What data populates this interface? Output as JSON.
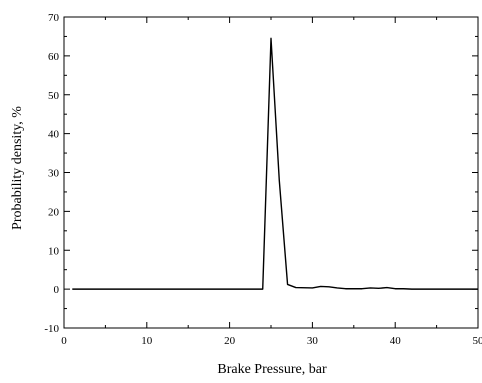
{
  "chart_data": {
    "type": "line",
    "title": "",
    "xlabel": "Brake Pressure, bar",
    "ylabel": "Probability density, %",
    "xlim": [
      0,
      50
    ],
    "ylim": [
      -10,
      70
    ],
    "x_ticks": [
      0,
      10,
      20,
      30,
      40,
      50
    ],
    "y_ticks": [
      -10,
      0,
      10,
      20,
      30,
      40,
      50,
      60,
      70
    ],
    "x_tick_labels": [
      "0",
      "10",
      "20",
      "30",
      "40",
      "50"
    ],
    "y_tick_labels": [
      "-10",
      "0",
      "10",
      "20",
      "30",
      "40",
      "50",
      "60",
      "70"
    ],
    "grid": false,
    "line_color": "#000000",
    "series": [
      {
        "x": [
          1,
          24,
          25,
          26,
          27,
          28,
          30,
          31,
          32,
          33,
          34,
          35,
          36,
          37,
          38,
          39,
          40,
          41,
          42,
          44,
          46,
          48,
          50
        ],
        "y": [
          0,
          0,
          64.5,
          28,
          1.2,
          0.4,
          0.3,
          0.7,
          0.6,
          0.3,
          0.1,
          0.1,
          0.1,
          0.3,
          0.2,
          0.4,
          0.1,
          0.1,
          0,
          0,
          0,
          0,
          0
        ]
      }
    ]
  }
}
